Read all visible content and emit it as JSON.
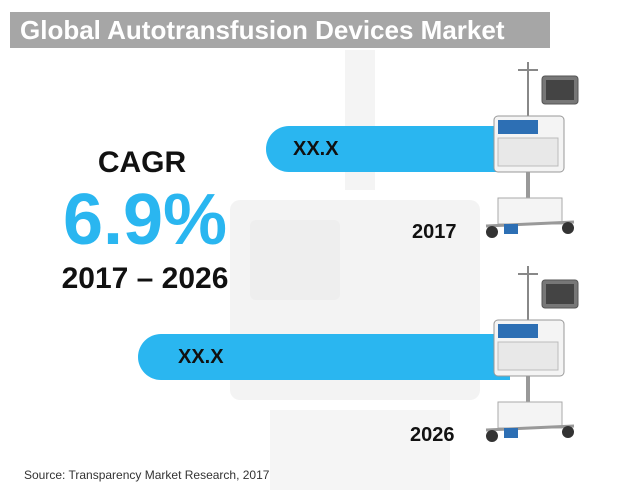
{
  "title": "Global Autotransfusion Devices Market",
  "cagr": {
    "label": "CAGR",
    "value": "6.9%",
    "period": "2017 – 2026"
  },
  "chart_data": {
    "type": "bar",
    "title": "Global Autotransfusion Devices Market",
    "categories": [
      "2017",
      "2026"
    ],
    "value_labels": [
      "XX.X",
      "XX.X"
    ],
    "orientation": "horizontal",
    "colors": {
      "bar": "#2ab6f0",
      "title_band": "#a6a6a6",
      "cagr": "#2ab6f0"
    }
  },
  "source": "Source: Transparency Market Research, 2017",
  "icons": [
    "autotransfusion-device-icon"
  ]
}
